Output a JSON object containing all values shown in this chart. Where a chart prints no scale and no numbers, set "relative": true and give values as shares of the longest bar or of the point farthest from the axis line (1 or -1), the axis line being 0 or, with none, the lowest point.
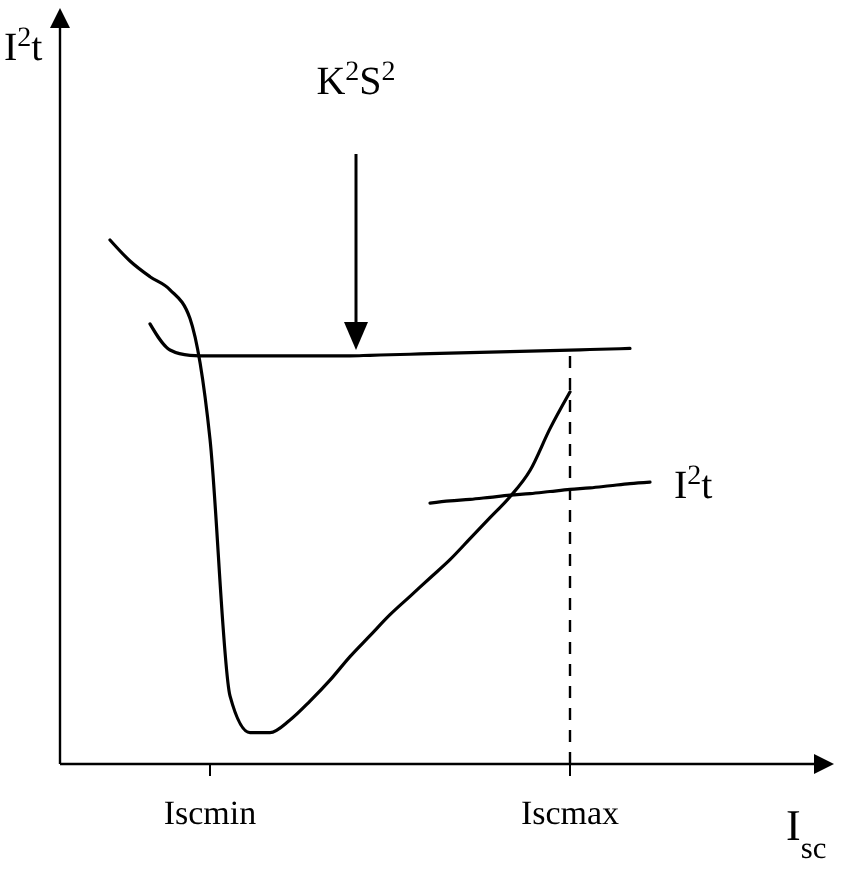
{
  "chart_data": {
    "type": "line",
    "xlabel": "I$_{sc}$",
    "ylabel": "I$^{2}$t",
    "relative": true,
    "legend": false,
    "grid": false,
    "marker": "none",
    "line_style": "solid",
    "categories": [
      null,
      null,
      null,
      null,
      null,
      null,
      null,
      "Iscmin",
      null,
      null,
      null,
      null,
      null,
      null,
      null,
      null,
      null,
      null,
      null,
      null,
      null,
      null,
      null,
      null,
      null,
      "Iscmax",
      null,
      null,
      null,
      null,
      null,
      null,
      null,
      null,
      null,
      null,
      null
    ],
    "series": [
      {
        "color": "#000000",
        "values": [
          null,
          null,
          1.0,
          0.96,
          0.93,
          0.905,
          0.85,
          0.62,
          0.13,
          0.06,
          0.06,
          0.084,
          0.12,
          0.16,
          0.205,
          0.245,
          0.285,
          0.32,
          0.355,
          0.39,
          0.43,
          0.47,
          0.51,
          0.56,
          0.64,
          0.71,
          null,
          null,
          null,
          null,
          null,
          null,
          null,
          null,
          null,
          null,
          null
        ]
      },
      {
        "color": "#000000",
        "values": [
          null,
          null,
          null,
          null,
          0.84,
          0.79,
          0.78,
          0.779,
          0.779,
          0.779,
          0.779,
          0.779,
          0.779,
          0.779,
          0.779,
          0.78,
          0.781,
          0.782,
          0.783,
          0.784,
          0.785,
          0.786,
          0.787,
          0.788,
          0.789,
          0.79,
          0.791,
          0.792,
          0.793,
          null,
          null,
          null,
          null,
          null,
          null,
          null,
          null
        ]
      },
      {
        "name": "I$^{2}$t",
        "color": "#000000",
        "values": [
          null,
          null,
          null,
          null,
          null,
          null,
          null,
          null,
          null,
          null,
          null,
          null,
          null,
          null,
          null,
          null,
          null,
          null,
          0.498,
          0.502,
          0.505,
          0.509,
          0.513,
          0.516,
          0.52,
          0.524,
          0.527,
          0.531,
          0.535,
          0.538,
          null,
          null,
          null,
          null,
          null,
          null,
          null
        ]
      }
    ],
    "ref_lines": [
      {
        "axis": "x",
        "value": "Iscmax",
        "line_style": "dashed"
      }
    ],
    "annotations": [
      "K$^{2}$S$^{2}$"
    ]
  }
}
